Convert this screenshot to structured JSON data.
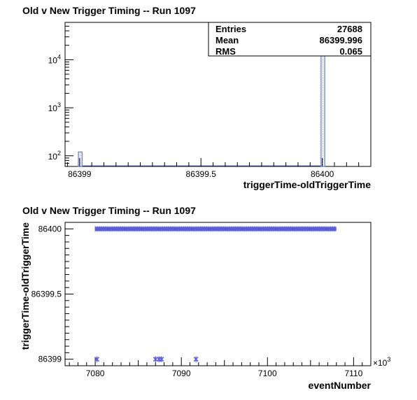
{
  "chart_data": [
    {
      "type": "bar",
      "title": "Old v New Trigger Timing -- Run 1097",
      "xlabel": "triggerTime-oldTriggerTime",
      "ylabel": "",
      "xlim": [
        86398.94,
        86400.2
      ],
      "ylim": [
        60,
        60000
      ],
      "log_y": true,
      "x_ticks": [
        {
          "value": 86399,
          "label": "86399"
        },
        {
          "value": 86399.5,
          "label": "86399.5"
        },
        {
          "value": 86400,
          "label": "86400"
        }
      ],
      "y_ticks": [
        {
          "value": 100,
          "base": "10",
          "exp": "2"
        },
        {
          "value": 1000,
          "base": "10",
          "exp": "3"
        },
        {
          "value": 10000,
          "base": "10",
          "exp": "4"
        }
      ],
      "bins": [
        {
          "x0": 86398.995,
          "x1": 86399.01,
          "value": 120
        },
        {
          "x0": 86399.995,
          "x1": 86400.01,
          "value": 27568
        }
      ],
      "bar_color": "#6d7fd0",
      "stats": {
        "rows": [
          {
            "label": "Entries",
            "value": "27688"
          },
          {
            "label": "Mean",
            "value": "86399.996"
          },
          {
            "label": "RMS",
            "value": "0.065"
          }
        ],
        "placement": "top-right"
      },
      "grid": false
    },
    {
      "type": "scatter",
      "title": "Old v New Trigger Timing -- Run 1097",
      "xlabel": "eventNumber",
      "ylabel": "triggerTime-oldTriggerTime",
      "x_multiplier": "×10",
      "x_multiplier_exp": "3",
      "xlim": [
        7076.5,
        7112
      ],
      "ylim": [
        86398.95,
        86400.05
      ],
      "x_ticks": [
        {
          "value": 7080,
          "label": "7080"
        },
        {
          "value": 7090,
          "label": "7090"
        },
        {
          "value": 7100,
          "label": "7100"
        },
        {
          "value": 7110,
          "label": "7110"
        }
      ],
      "y_ticks": [
        {
          "value": 86399,
          "label": "86399"
        },
        {
          "value": 86399.5,
          "label": "86399.5"
        },
        {
          "value": 86400,
          "label": "86400"
        }
      ],
      "band": {
        "x_start": 7080.0,
        "x_end": 7108.0,
        "y": 86400
      },
      "points": [
        {
          "x": 7080.2,
          "y": 86399
        },
        {
          "x": 7087.0,
          "y": 86399
        },
        {
          "x": 7087.4,
          "y": 86399
        },
        {
          "x": 7087.7,
          "y": 86399
        },
        {
          "x": 7091.7,
          "y": 86399
        }
      ],
      "marker_color": "#5a5fd8",
      "grid": false
    }
  ]
}
